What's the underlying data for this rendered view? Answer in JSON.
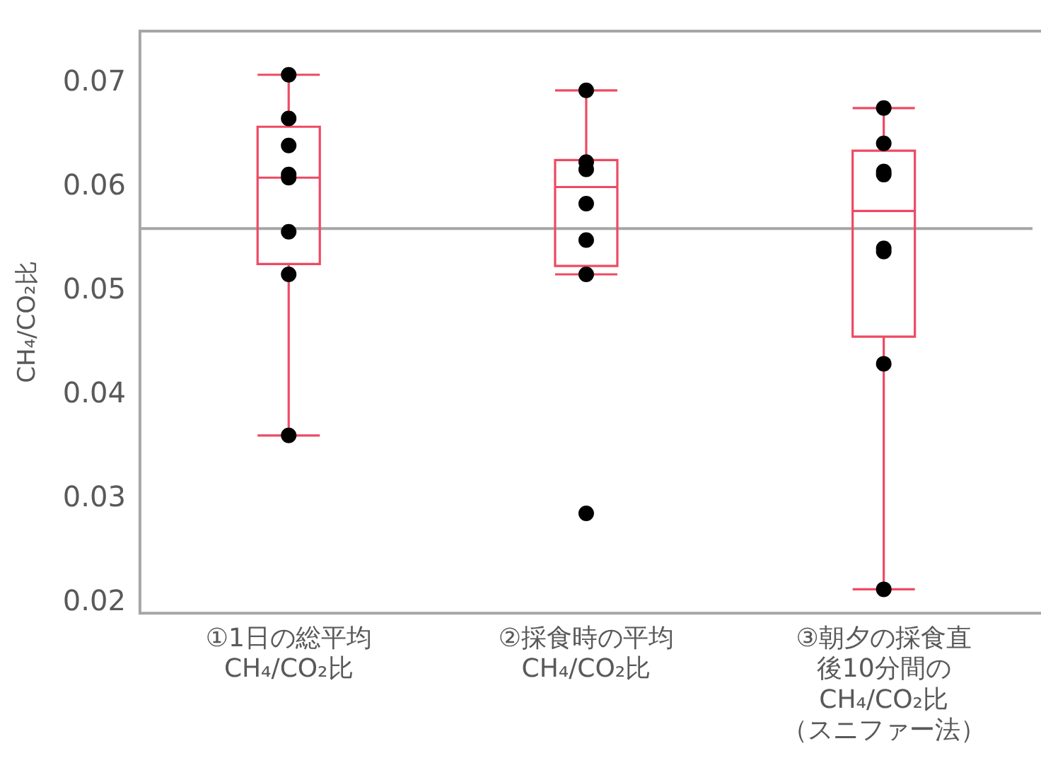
{
  "chart_data": {
    "type": "box",
    "ylabel": "CH₄/CO₂比",
    "categories": [
      "①1日の総平均 CH₄/CO₂比",
      "②採食時の平均 CH₄/CO₂比",
      "③朝夕の採食直後10分間の CH₄/CO₂比（スニファー法）"
    ],
    "color": "#ee4a63",
    "boxes": [
      {
        "low": 0.0361,
        "q1": 0.0526,
        "median": 0.0609,
        "q3": 0.0658,
        "high": 0.0708
      },
      {
        "low": 0.0516,
        "q1": 0.0524,
        "median": 0.06,
        "q3": 0.0626,
        "high": 0.0693
      },
      {
        "low": 0.0213,
        "q1": 0.0456,
        "median": 0.0577,
        "q3": 0.0635,
        "high": 0.0676
      }
    ],
    "series": [
      {
        "type": "scatter",
        "color": "#000000",
        "x": [
          "①1日の総平均 CH₄/CO₂比",
          "①1日の総平均 CH₄/CO₂比",
          "①1日の総平均 CH₄/CO₂比",
          "①1日の総平均 CH₄/CO₂比",
          "①1日の総平均 CH₄/CO₂比",
          "①1日の総平均 CH₄/CO₂比",
          "①1日の総平均 CH₄/CO₂比",
          "①1日の総平均 CH₄/CO₂比",
          "②採食時の平均 CH₄/CO₂比",
          "②採食時の平均 CH₄/CO₂比",
          "②採食時の平均 CH₄/CO₂比",
          "②採食時の平均 CH₄/CO₂比",
          "②採食時の平均 CH₄/CO₂比",
          "②採食時の平均 CH₄/CO₂比",
          "②採食時の平均 CH₄/CO₂比",
          "③朝夕の採食直後10分間の CH₄/CO₂比（スニファー法）",
          "③朝夕の採食直後10分間の CH₄/CO₂比（スニファー法）",
          "③朝夕の採食直後10分間の CH₄/CO₂比（スニファー法）",
          "③朝夕の採食直後10分間の CH₄/CO₂比（スニファー法）",
          "③朝夕の採食直後10分間の CH₄/CO₂比（スニファー法）",
          "③朝夕の採食直後10分間の CH₄/CO₂比（スニファー法）",
          "③朝夕の採食直後10分間の CH₄/CO₂比（スニファー法）",
          "③朝夕の採食直後10分間の CH₄/CO₂比（スニファー法）"
        ],
        "values": [
          0.0708,
          0.0666,
          0.064,
          0.0612,
          0.0609,
          0.0557,
          0.0516,
          0.0361,
          0.0693,
          0.0624,
          0.0617,
          0.0584,
          0.0549,
          0.0516,
          0.0286,
          0.0676,
          0.0642,
          0.0615,
          0.0612,
          0.0541,
          0.0538,
          0.043,
          0.0213
        ]
      }
    ],
    "ref_lines": [
      {
        "axis": "y",
        "value": 0.056,
        "color": "#a6a6a6"
      }
    ],
    "ylim": [
      0.019,
      0.075
    ],
    "yticks": [
      0.02,
      0.03,
      0.04,
      0.05,
      0.06,
      0.07
    ],
    "grid": false,
    "legend": false,
    "marker": "circle"
  }
}
